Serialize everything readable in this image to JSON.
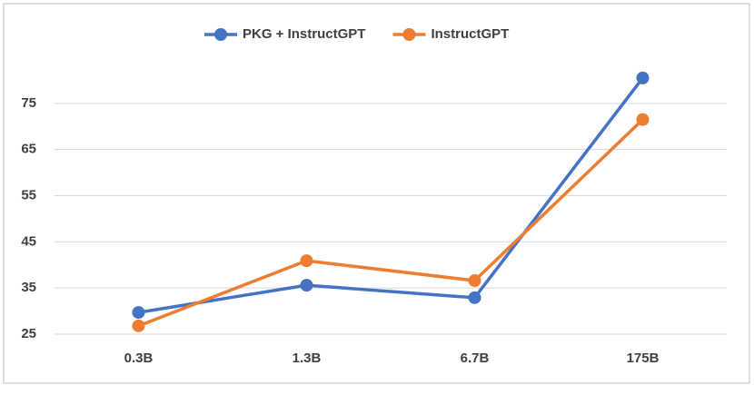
{
  "chart_data": {
    "type": "line",
    "categories": [
      "0.3B",
      "1.3B",
      "6.7B",
      "175B"
    ],
    "series": [
      {
        "name": "PKG + InstructGPT",
        "color": "#4472c4",
        "values": [
          29.7,
          35.6,
          32.9,
          80.5
        ]
      },
      {
        "name": "InstructGPT",
        "color": "#ed7d31",
        "values": [
          26.8,
          40.9,
          36.6,
          71.5
        ]
      }
    ],
    "ylim": [
      25,
      85
    ],
    "yticks": [
      25,
      35,
      45,
      55,
      65,
      75
    ],
    "grid": true,
    "legend": "top"
  }
}
